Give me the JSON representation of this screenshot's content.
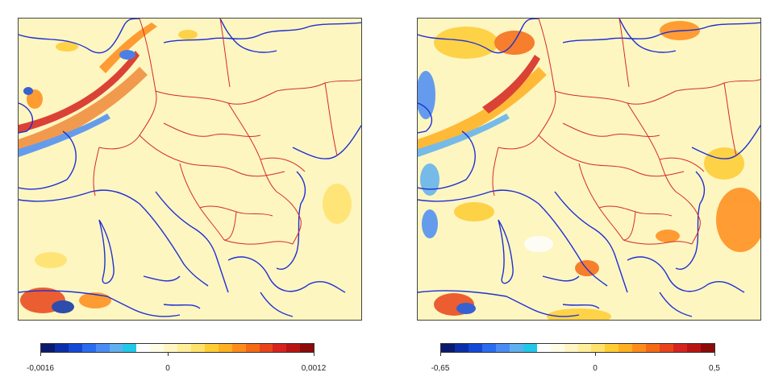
{
  "left_panel": {
    "colorbar": {
      "colors": [
        "#0a1a6e",
        "#0b2fa8",
        "#1448d6",
        "#2a6cf0",
        "#4a8cf5",
        "#5fb0f0",
        "#22c8e8",
        "#ffffff",
        "#fffde6",
        "#fff6c4",
        "#ffef9a",
        "#ffe26b",
        "#ffcc33",
        "#ffb020",
        "#ff8c1a",
        "#f56a14",
        "#e8441a",
        "#d6231f",
        "#b81414",
        "#8c0a0a"
      ],
      "tick_labels": [
        "-0,0016",
        "0",
        "0,0012"
      ],
      "tick_values": [
        -0.0016,
        0,
        0.0012
      ]
    }
  },
  "right_panel": {
    "colorbar": {
      "colors": [
        "#0a1a6e",
        "#0b2fa8",
        "#1448d6",
        "#2a6cf0",
        "#4a8cf5",
        "#5fb0f0",
        "#22c8e8",
        "#ffffff",
        "#fffde6",
        "#fff6c4",
        "#ffef9a",
        "#ffe26b",
        "#ffcc33",
        "#ffb020",
        "#ff8c1a",
        "#f56a14",
        "#e8441a",
        "#d6231f",
        "#b81414",
        "#8c0a0a"
      ],
      "tick_labels": [
        "-0,65",
        "0",
        "0,5"
      ],
      "tick_values": [
        -0.65,
        0,
        0.5
      ]
    }
  },
  "colors": {
    "field_background": "#fdf6c0",
    "coastline": "#1f2fd6",
    "borders": "#d62a2a",
    "positive_anomaly": "#e8441a",
    "negative_anomaly": "#2a6cf0"
  }
}
